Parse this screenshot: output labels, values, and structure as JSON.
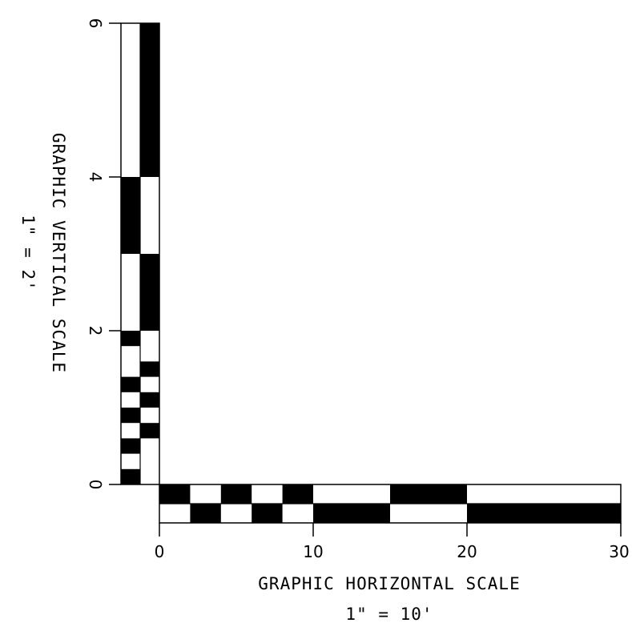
{
  "colors": {
    "ink": "#000000",
    "paper": "#ffffff"
  },
  "vertical_scale": {
    "title": "GRAPHIC VERTICAL SCALE",
    "ratio": "1\" = 2'",
    "tick_labels": [
      "0",
      "2",
      "4",
      "6"
    ],
    "range": [
      0,
      6
    ],
    "left_column_black": [
      [
        0,
        0.2
      ],
      [
        0.4,
        0.6
      ],
      [
        0.8,
        1.0
      ],
      [
        1.2,
        1.4
      ],
      [
        1.8,
        2.0
      ],
      [
        3.0,
        4.0
      ]
    ],
    "right_column_black": [
      [
        0.6,
        0.8
      ],
      [
        1.0,
        1.2
      ],
      [
        1.4,
        1.6
      ],
      [
        2.0,
        3.0
      ],
      [
        4.0,
        6.0
      ]
    ]
  },
  "horizontal_scale": {
    "title": "GRAPHIC HORIZONTAL SCALE",
    "ratio": "1\" = 10'",
    "tick_labels": [
      "0",
      "10",
      "20",
      "30"
    ],
    "range": [
      0,
      30
    ],
    "top_row_black": [
      [
        0,
        2
      ],
      [
        4,
        6
      ],
      [
        8,
        10
      ],
      [
        15,
        20
      ]
    ],
    "bottom_row_black": [
      [
        2,
        4
      ],
      [
        6,
        8
      ],
      [
        10,
        15
      ],
      [
        20,
        30
      ]
    ]
  }
}
